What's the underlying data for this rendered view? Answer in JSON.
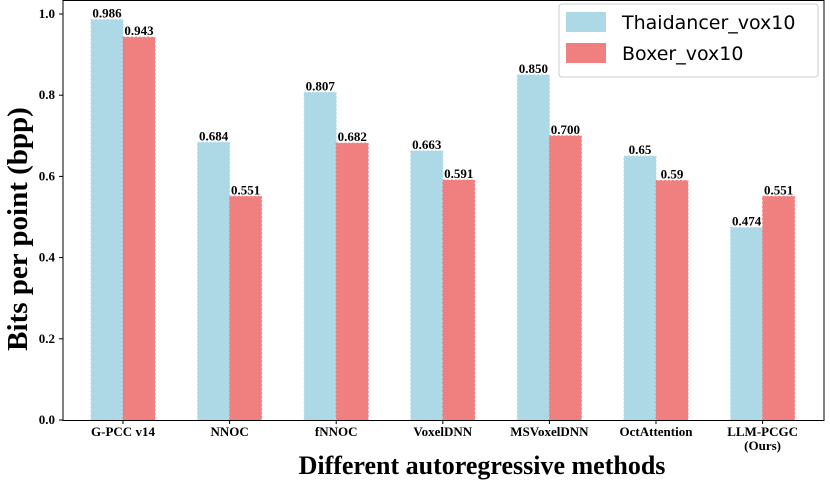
{
  "chart_data": {
    "type": "bar",
    "categories": [
      "G-PCC v14",
      "NNOC",
      "fNNOC",
      "VoxelDNN",
      "MSVoxelDNN",
      "OctAttention",
      "LLM-PCGC\n(Ours)"
    ],
    "series": [
      {
        "name": "Thaidancer_vox10",
        "color": "#add8e6",
        "values": [
          0.986,
          0.684,
          0.807,
          0.663,
          0.85,
          0.65,
          0.474
        ],
        "labels": [
          "0.986",
          "0.684",
          "0.807",
          "0.663",
          "0.850",
          "0.65",
          "0.474"
        ]
      },
      {
        "name": "Boxer_vox10",
        "color": "#f08080",
        "values": [
          0.943,
          0.551,
          0.682,
          0.591,
          0.7,
          0.59,
          0.551
        ],
        "labels": [
          "0.943",
          "0.551",
          "0.682",
          "0.591",
          "0.700",
          "0.59",
          "0.551"
        ]
      }
    ],
    "xlabel": "Different autoregressive methods",
    "ylabel": "Bits per point (bpp)",
    "ylim": [
      0,
      1.0
    ],
    "yticks": [
      "0.0",
      "0.2",
      "0.4",
      "0.6",
      "0.8",
      "1.0"
    ],
    "grid": false,
    "legend_position": "top-right"
  }
}
